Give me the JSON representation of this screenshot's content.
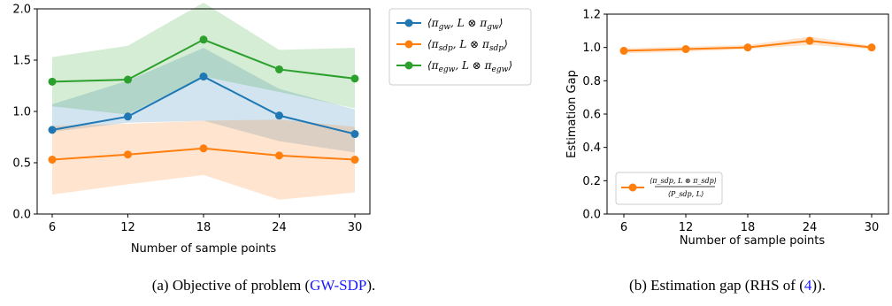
{
  "chart_data": [
    {
      "type": "line",
      "xlabel": "Number of sample points",
      "ylabel": "",
      "x": [
        6,
        12,
        18,
        24,
        30
      ],
      "ylim": [
        0.0,
        2.0
      ],
      "yticks": [
        "0.0",
        "0.5",
        "1.0",
        "1.5",
        "2.0"
      ],
      "grid": false,
      "legend_position": "outside-right",
      "series": [
        {
          "name": "⟨π_gw, L ⊗ π_gw⟩",
          "label_main": "⟨π",
          "label_sub1": "gw",
          "label_mid": ", L ⊗ π",
          "label_sub2": "gw",
          "label_end": "⟩",
          "color": "#1f77b4",
          "values": [
            0.82,
            0.95,
            1.34,
            0.96,
            0.78
          ],
          "lower": [
            0.8,
            0.89,
            0.91,
            0.71,
            0.6
          ],
          "upper": [
            1.07,
            1.3,
            1.62,
            1.22,
            1.02
          ]
        },
        {
          "name": "⟨π_sdp, L ⊗ π_sdp⟩",
          "label_main": "⟨π",
          "label_sub1": "sdp",
          "label_mid": ", L ⊗ π",
          "label_sub2": "sdp",
          "label_end": "⟩",
          "color": "#ff7f0e",
          "values": [
            0.53,
            0.58,
            0.64,
            0.57,
            0.53
          ],
          "lower": [
            0.19,
            0.29,
            0.38,
            0.14,
            0.21
          ],
          "upper": [
            0.86,
            0.88,
            0.91,
            0.92,
            0.85
          ]
        },
        {
          "name": "⟨π_egw, L ⊗ π_egw⟩",
          "label_main": "⟨π",
          "label_sub1": "egw",
          "label_mid": ", L ⊗ π",
          "label_sub2": "egw",
          "label_end": "⟩",
          "color": "#2ca02c",
          "values": [
            1.29,
            1.31,
            1.7,
            1.41,
            1.32
          ],
          "lower": [
            1.05,
            0.97,
            1.34,
            1.19,
            1.03
          ],
          "upper": [
            1.53,
            1.64,
            2.06,
            1.6,
            1.62
          ]
        }
      ],
      "caption_prefix": "(a) Objective of problem (",
      "caption_link": "GW-SDP",
      "caption_suffix": ")."
    },
    {
      "type": "line",
      "xlabel": "Number of sample points",
      "ylabel": "Estimation Gap",
      "x": [
        6,
        12,
        18,
        24,
        30
      ],
      "ylim": [
        0.0,
        1.2
      ],
      "yticks": [
        "0.0",
        "0.2",
        "0.4",
        "0.6",
        "0.8",
        "1.0",
        "1.2"
      ],
      "grid": false,
      "legend_position": "lower-left",
      "series": [
        {
          "name": "⟨π_sdp, L ⊗ π_sdp⟩ / ⟨P_sdp, L⟩",
          "label_num": "⟨π_sdp, L ⊗ π_sdp⟩",
          "label_den": "⟨P_sdp, L⟩",
          "color": "#ff7f0e",
          "values": [
            0.98,
            0.99,
            1.0,
            1.04,
            1.0
          ],
          "lower": [
            0.965,
            0.975,
            0.99,
            1.015,
            0.99
          ],
          "upper": [
            0.995,
            1.005,
            1.015,
            1.065,
            1.01
          ]
        }
      ],
      "caption_prefix": "(b) Estimation gap (RHS of (",
      "caption_link": "4",
      "caption_suffix": "))."
    }
  ]
}
